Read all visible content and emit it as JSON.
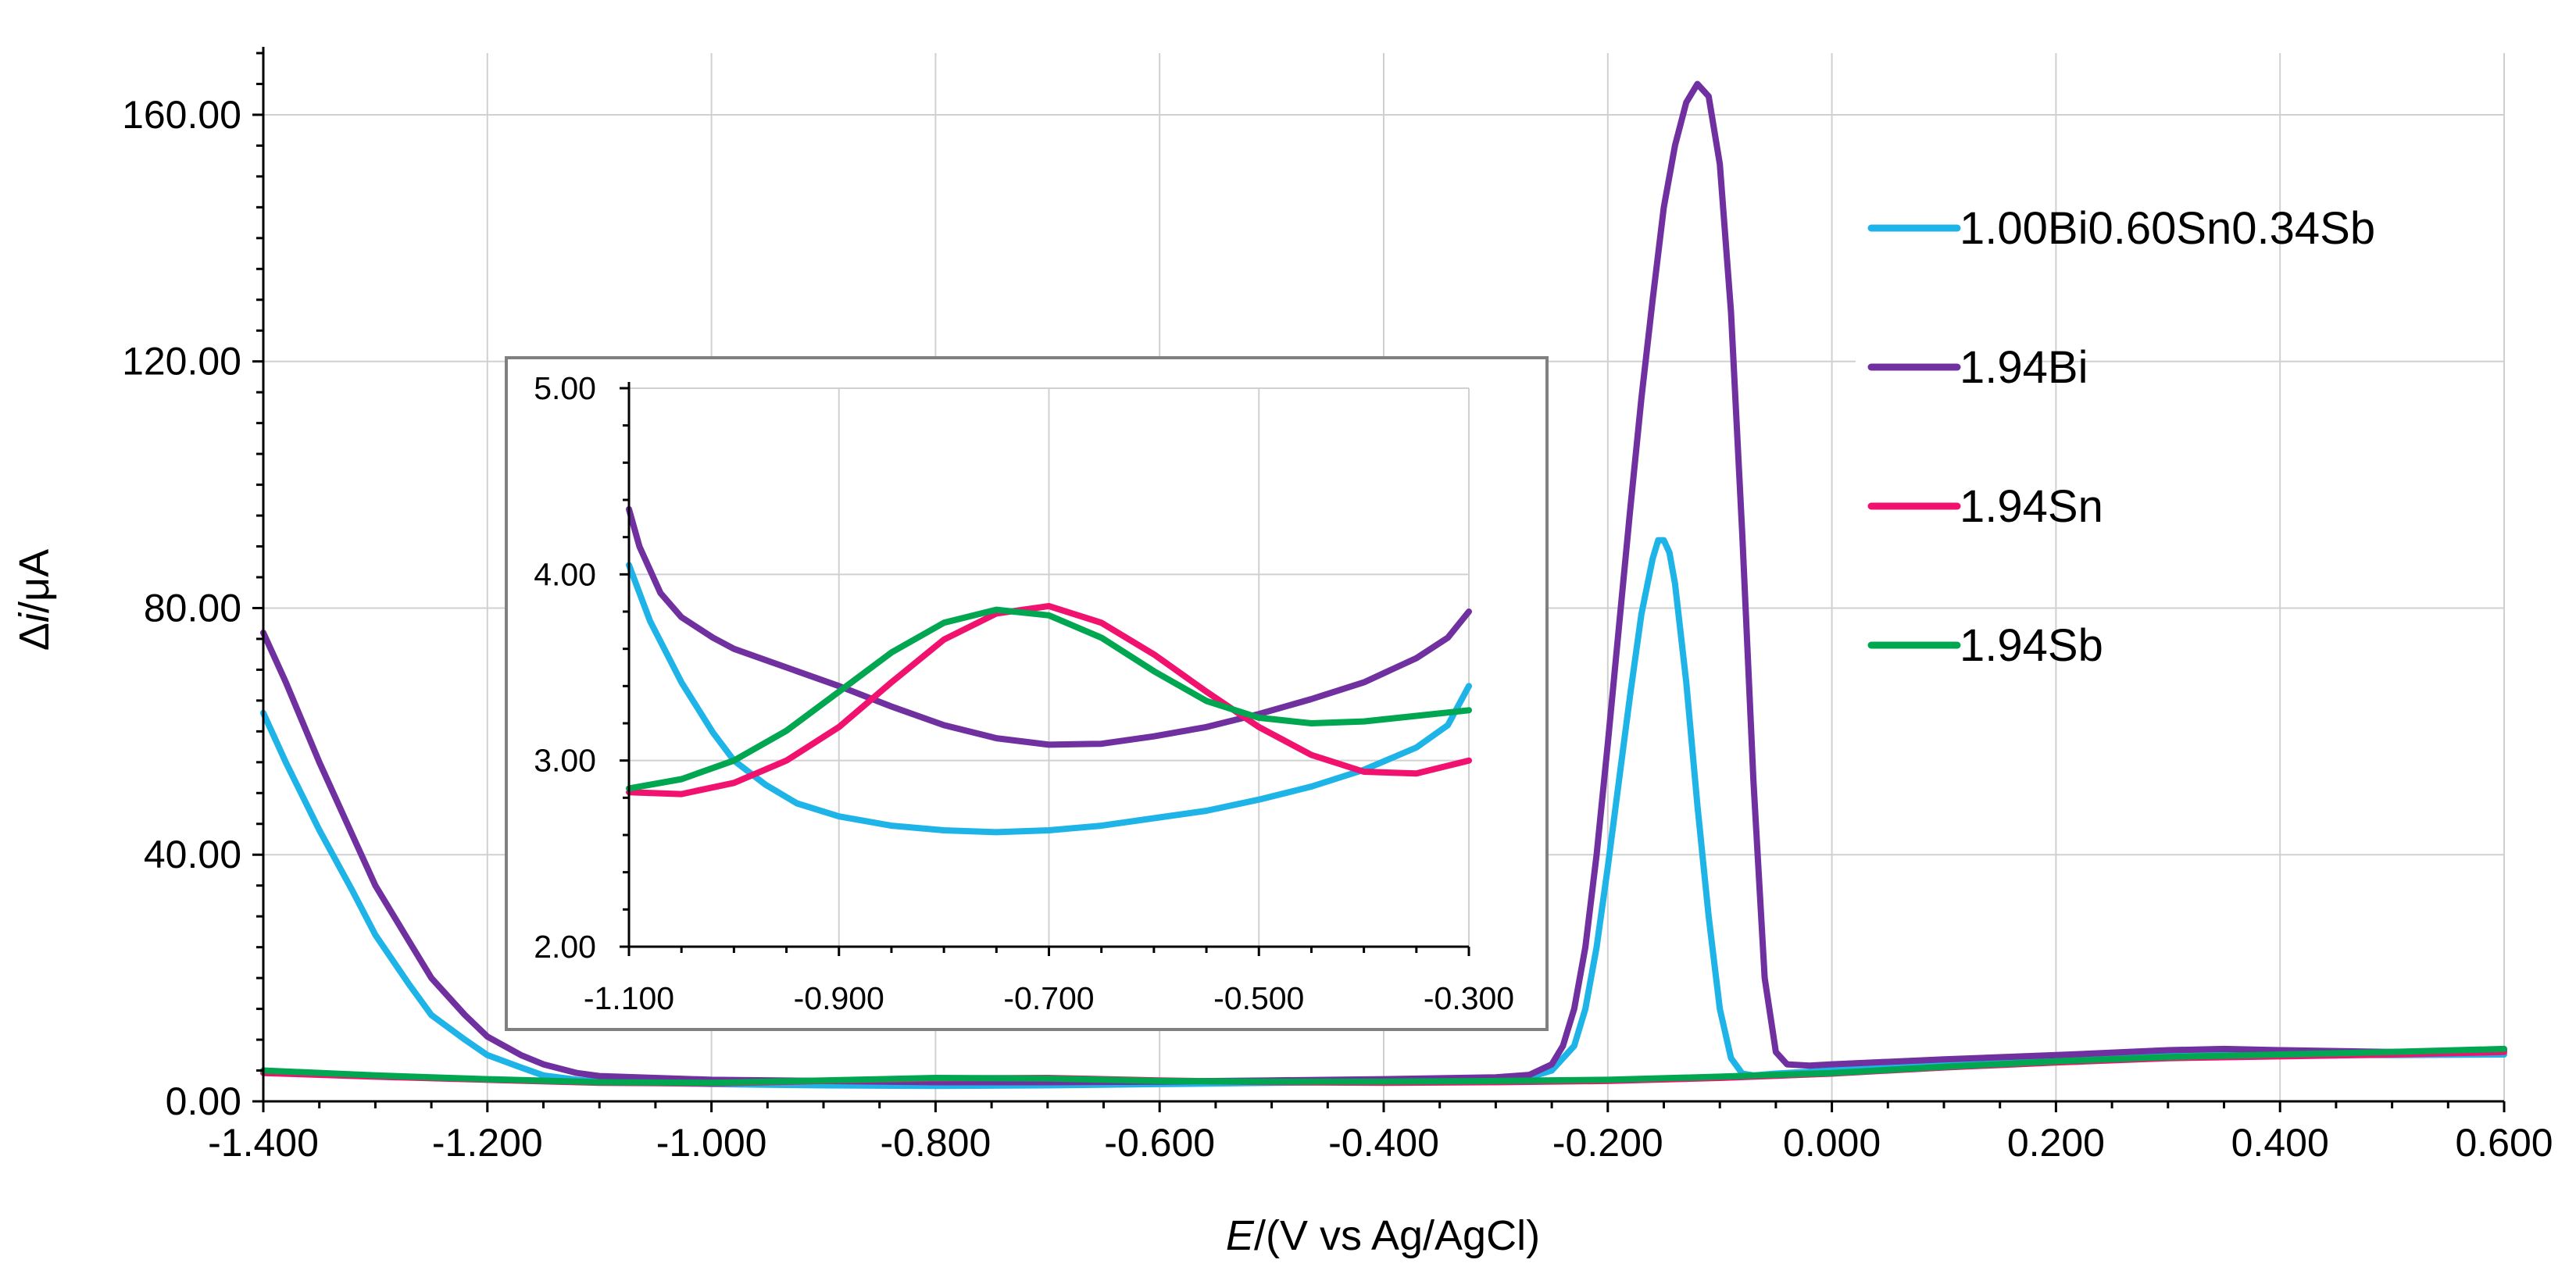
{
  "chart_data": [
    {
      "type": "line",
      "id": "main",
      "xlabel_italic": "E",
      "xlabel_rest": "/(V vs Ag/AgCl)",
      "ylabel_delta": "Δ",
      "ylabel_italic": "i",
      "ylabel_rest": "/μA",
      "xlim": [
        -1.4,
        0.6
      ],
      "ylim": [
        0,
        170
      ],
      "x_ticks": [
        -1.4,
        -1.2,
        -1.0,
        -0.8,
        -0.6,
        -0.4,
        -0.2,
        0.0,
        0.2,
        0.4,
        0.6
      ],
      "x_tick_labels": [
        "-1.400",
        "-1.200",
        "-1.000",
        "-0.800",
        "-0.600",
        "-0.400",
        "-0.200",
        "0.000",
        "0.200",
        "0.400",
        "0.600"
      ],
      "y_ticks": [
        0,
        40,
        80,
        120,
        160
      ],
      "y_tick_labels": [
        "0.00",
        "40.00",
        "80.00",
        "120.00",
        "160.00"
      ],
      "grid": true,
      "legend_position": "right",
      "series": [
        {
          "name": "1.00Bi0.60Sn0.34Sb",
          "color": "#1EB4E8",
          "points": [
            [
              -1.4,
              63
            ],
            [
              -1.38,
              55
            ],
            [
              -1.35,
              44
            ],
            [
              -1.32,
              34
            ],
            [
              -1.3,
              27
            ],
            [
              -1.27,
              19
            ],
            [
              -1.25,
              14
            ],
            [
              -1.22,
              10
            ],
            [
              -1.2,
              7.5
            ],
            [
              -1.17,
              5.5
            ],
            [
              -1.15,
              4.2
            ],
            [
              -1.12,
              3.5
            ],
            [
              -1.1,
              3.2
            ],
            [
              -1.0,
              2.8
            ],
            [
              -0.9,
              2.6
            ],
            [
              -0.8,
              2.5
            ],
            [
              -0.7,
              2.6
            ],
            [
              -0.6,
              2.8
            ],
            [
              -0.5,
              3.0
            ],
            [
              -0.4,
              3.2
            ],
            [
              -0.3,
              3.6
            ],
            [
              -0.27,
              3.9
            ],
            [
              -0.25,
              5
            ],
            [
              -0.23,
              9
            ],
            [
              -0.22,
              15
            ],
            [
              -0.21,
              25
            ],
            [
              -0.2,
              38
            ],
            [
              -0.19,
              52
            ],
            [
              -0.18,
              66
            ],
            [
              -0.17,
              79
            ],
            [
              -0.16,
              88
            ],
            [
              -0.155,
              91
            ],
            [
              -0.15,
              91
            ],
            [
              -0.145,
              89
            ],
            [
              -0.14,
              84
            ],
            [
              -0.13,
              68
            ],
            [
              -0.12,
              48
            ],
            [
              -0.11,
              30
            ],
            [
              -0.1,
              15
            ],
            [
              -0.09,
              7
            ],
            [
              -0.08,
              4.5
            ],
            [
              -0.07,
              4.2
            ],
            [
              -0.05,
              4.5
            ],
            [
              0.0,
              5
            ],
            [
              0.1,
              6
            ],
            [
              0.2,
              6.8
            ],
            [
              0.3,
              7.5
            ],
            [
              0.4,
              7.6
            ],
            [
              0.5,
              7.5
            ],
            [
              0.6,
              7.6
            ]
          ]
        },
        {
          "name": "1.94Bi",
          "color": "#7030A0",
          "points": [
            [
              -1.4,
              76
            ],
            [
              -1.38,
              68
            ],
            [
              -1.35,
              55
            ],
            [
              -1.32,
              43
            ],
            [
              -1.3,
              35
            ],
            [
              -1.27,
              26
            ],
            [
              -1.25,
              20
            ],
            [
              -1.22,
              14
            ],
            [
              -1.2,
              10.5
            ],
            [
              -1.17,
              7.5
            ],
            [
              -1.15,
              6
            ],
            [
              -1.12,
              4.6
            ],
            [
              -1.1,
              4.1
            ],
            [
              -1.0,
              3.5
            ],
            [
              -0.9,
              3.3
            ],
            [
              -0.8,
              3.1
            ],
            [
              -0.7,
              3.1
            ],
            [
              -0.6,
              3.2
            ],
            [
              -0.5,
              3.4
            ],
            [
              -0.4,
              3.6
            ],
            [
              -0.3,
              3.9
            ],
            [
              -0.27,
              4.3
            ],
            [
              -0.25,
              6
            ],
            [
              -0.24,
              9
            ],
            [
              -0.23,
              15
            ],
            [
              -0.22,
              25
            ],
            [
              -0.21,
              40
            ],
            [
              -0.2,
              58
            ],
            [
              -0.19,
              77
            ],
            [
              -0.18,
              96
            ],
            [
              -0.17,
              114
            ],
            [
              -0.16,
              130
            ],
            [
              -0.15,
              145
            ],
            [
              -0.14,
              155
            ],
            [
              -0.13,
              162
            ],
            [
              -0.12,
              165
            ],
            [
              -0.11,
              163
            ],
            [
              -0.1,
              152
            ],
            [
              -0.09,
              128
            ],
            [
              -0.08,
              92
            ],
            [
              -0.07,
              52
            ],
            [
              -0.06,
              20
            ],
            [
              -0.05,
              8
            ],
            [
              -0.04,
              6
            ],
            [
              -0.02,
              5.8
            ],
            [
              0.0,
              6
            ],
            [
              0.1,
              6.8
            ],
            [
              0.2,
              7.5
            ],
            [
              0.3,
              8.3
            ],
            [
              0.35,
              8.5
            ],
            [
              0.4,
              8.3
            ],
            [
              0.5,
              8
            ],
            [
              0.6,
              8.3
            ]
          ]
        },
        {
          "name": "1.94Sn",
          "color": "#F0126E",
          "points": [
            [
              -1.4,
              4.6
            ],
            [
              -1.3,
              4.0
            ],
            [
              -1.2,
              3.5
            ],
            [
              -1.1,
              3.0
            ],
            [
              -1.0,
              2.9
            ],
            [
              -0.9,
              3.3
            ],
            [
              -0.8,
              3.7
            ],
            [
              -0.7,
              3.8
            ],
            [
              -0.6,
              3.4
            ],
            [
              -0.5,
              3.1
            ],
            [
              -0.4,
              3.0
            ],
            [
              -0.3,
              3.1
            ],
            [
              -0.2,
              3.3
            ],
            [
              -0.1,
              3.8
            ],
            [
              0.0,
              4.5
            ],
            [
              0.1,
              5.5
            ],
            [
              0.2,
              6.3
            ],
            [
              0.3,
              7.0
            ],
            [
              0.4,
              7.3
            ],
            [
              0.5,
              7.6
            ],
            [
              0.6,
              8.0
            ]
          ]
        },
        {
          "name": "1.94Sb",
          "color": "#00A650",
          "points": [
            [
              -1.4,
              5.0
            ],
            [
              -1.3,
              4.2
            ],
            [
              -1.2,
              3.6
            ],
            [
              -1.1,
              3.1
            ],
            [
              -1.0,
              3.0
            ],
            [
              -0.9,
              3.4
            ],
            [
              -0.8,
              3.8
            ],
            [
              -0.7,
              3.7
            ],
            [
              -0.6,
              3.3
            ],
            [
              -0.5,
              3.2
            ],
            [
              -0.4,
              3.2
            ],
            [
              -0.3,
              3.3
            ],
            [
              -0.2,
              3.5
            ],
            [
              -0.1,
              4.0
            ],
            [
              0.0,
              4.6
            ],
            [
              0.1,
              5.6
            ],
            [
              0.2,
              6.5
            ],
            [
              0.3,
              7.2
            ],
            [
              0.4,
              7.6
            ],
            [
              0.5,
              8.0
            ],
            [
              0.6,
              8.5
            ]
          ]
        }
      ]
    },
    {
      "type": "line",
      "id": "inset",
      "xlim": [
        -1.1,
        -0.3
      ],
      "ylim": [
        2.0,
        5.0
      ],
      "x_ticks": [
        -1.1,
        -0.9,
        -0.7,
        -0.5,
        -0.3
      ],
      "x_tick_labels": [
        "-1.100",
        "-0.900",
        "-0.700",
        "-0.500",
        "-0.300"
      ],
      "y_ticks": [
        2.0,
        3.0,
        4.0,
        5.0
      ],
      "y_tick_labels": [
        "2.00",
        "3.00",
        "4.00",
        "5.00"
      ],
      "grid": true,
      "series": [
        {
          "name": "1.00Bi0.60Sn0.34Sb",
          "color": "#1EB4E8",
          "points": [
            [
              -1.1,
              4.05
            ],
            [
              -1.08,
              3.75
            ],
            [
              -1.05,
              3.42
            ],
            [
              -1.02,
              3.15
            ],
            [
              -1.0,
              3.0
            ],
            [
              -0.97,
              2.87
            ],
            [
              -0.94,
              2.77
            ],
            [
              -0.9,
              2.7
            ],
            [
              -0.85,
              2.65
            ],
            [
              -0.8,
              2.625
            ],
            [
              -0.75,
              2.615
            ],
            [
              -0.7,
              2.625
            ],
            [
              -0.65,
              2.65
            ],
            [
              -0.6,
              2.69
            ],
            [
              -0.55,
              2.73
            ],
            [
              -0.5,
              2.79
            ],
            [
              -0.45,
              2.86
            ],
            [
              -0.4,
              2.95
            ],
            [
              -0.35,
              3.07
            ],
            [
              -0.32,
              3.19
            ],
            [
              -0.3,
              3.4
            ]
          ]
        },
        {
          "name": "1.94Bi",
          "color": "#7030A0",
          "points": [
            [
              -1.1,
              4.35
            ],
            [
              -1.09,
              4.15
            ],
            [
              -1.07,
              3.9
            ],
            [
              -1.05,
              3.77
            ],
            [
              -1.02,
              3.66
            ],
            [
              -1.0,
              3.6
            ],
            [
              -0.95,
              3.5
            ],
            [
              -0.9,
              3.4
            ],
            [
              -0.85,
              3.29
            ],
            [
              -0.8,
              3.19
            ],
            [
              -0.75,
              3.12
            ],
            [
              -0.7,
              3.085
            ],
            [
              -0.65,
              3.09
            ],
            [
              -0.6,
              3.13
            ],
            [
              -0.55,
              3.18
            ],
            [
              -0.5,
              3.25
            ],
            [
              -0.45,
              3.33
            ],
            [
              -0.4,
              3.42
            ],
            [
              -0.35,
              3.55
            ],
            [
              -0.32,
              3.66
            ],
            [
              -0.3,
              3.8
            ]
          ]
        },
        {
          "name": "1.94Sn",
          "color": "#F0126E",
          "points": [
            [
              -1.1,
              2.83
            ],
            [
              -1.05,
              2.82
            ],
            [
              -1.0,
              2.88
            ],
            [
              -0.95,
              3.0
            ],
            [
              -0.9,
              3.18
            ],
            [
              -0.85,
              3.42
            ],
            [
              -0.8,
              3.65
            ],
            [
              -0.75,
              3.79
            ],
            [
              -0.7,
              3.83
            ],
            [
              -0.65,
              3.74
            ],
            [
              -0.6,
              3.57
            ],
            [
              -0.55,
              3.37
            ],
            [
              -0.5,
              3.18
            ],
            [
              -0.45,
              3.03
            ],
            [
              -0.4,
              2.94
            ],
            [
              -0.35,
              2.93
            ],
            [
              -0.3,
              3.0
            ]
          ]
        },
        {
          "name": "1.94Sb",
          "color": "#00A650",
          "points": [
            [
              -1.1,
              2.85
            ],
            [
              -1.05,
              2.9
            ],
            [
              -1.0,
              3.0
            ],
            [
              -0.95,
              3.16
            ],
            [
              -0.9,
              3.37
            ],
            [
              -0.85,
              3.58
            ],
            [
              -0.8,
              3.74
            ],
            [
              -0.75,
              3.81
            ],
            [
              -0.7,
              3.78
            ],
            [
              -0.65,
              3.66
            ],
            [
              -0.6,
              3.48
            ],
            [
              -0.55,
              3.32
            ],
            [
              -0.5,
              3.23
            ],
            [
              -0.45,
              3.2
            ],
            [
              -0.4,
              3.21
            ],
            [
              -0.35,
              3.24
            ],
            [
              -0.3,
              3.27
            ]
          ]
        }
      ]
    }
  ]
}
